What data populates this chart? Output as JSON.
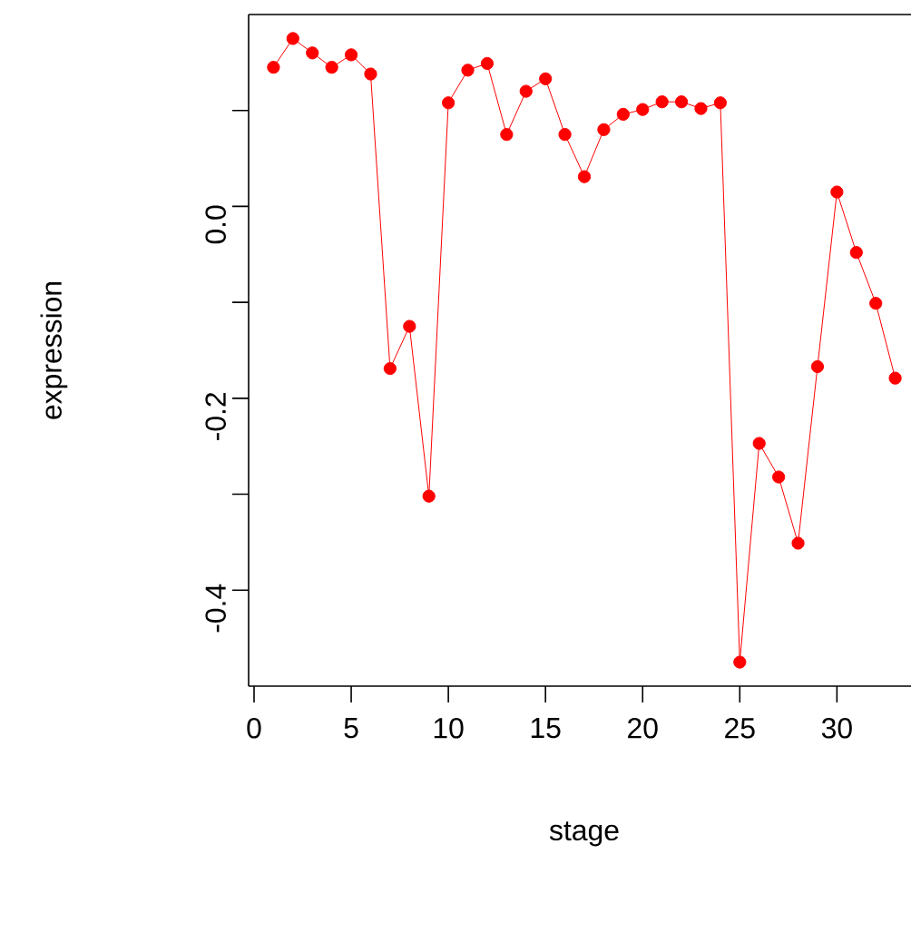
{
  "chart_data": {
    "type": "line",
    "xlabel": "stage",
    "ylabel": "expression",
    "x": [
      1,
      2,
      3,
      4,
      5,
      6,
      7,
      8,
      9,
      10,
      11,
      12,
      13,
      14,
      15,
      16,
      17,
      18,
      19,
      20,
      21,
      22,
      23,
      24,
      25,
      26,
      27,
      28,
      29,
      30,
      31,
      32,
      33
    ],
    "series": [
      {
        "color": "#ff0000",
        "values": [
          0.145,
          0.175,
          0.16,
          0.145,
          0.158,
          0.138,
          -0.169,
          -0.125,
          -0.302,
          0.108,
          0.142,
          0.149,
          0.075,
          0.12,
          0.133,
          0.075,
          0.031,
          0.08,
          0.096,
          0.101,
          0.109,
          0.109,
          0.102,
          0.108,
          -0.475,
          -0.247,
          -0.282,
          -0.351,
          -0.167,
          0.015,
          -0.048,
          -0.101,
          -0.179
        ]
      }
    ],
    "xlim": [
      -0.28,
      34.28
    ],
    "ylim": [
      -0.5,
      0.2
    ],
    "xticks": [
      0,
      5,
      10,
      15,
      20,
      25,
      30
    ],
    "yticks": [
      {
        "value": -0.4,
        "label": "-0.4"
      },
      {
        "value": -0.3,
        "label": null
      },
      {
        "value": -0.2,
        "label": "-0.2"
      },
      {
        "value": -0.1,
        "label": null
      },
      {
        "value": 0.0,
        "label": "0.0"
      },
      {
        "value": 0.1,
        "label": null
      }
    ],
    "grid": false,
    "marker": "circle",
    "line_style": "solid"
  }
}
